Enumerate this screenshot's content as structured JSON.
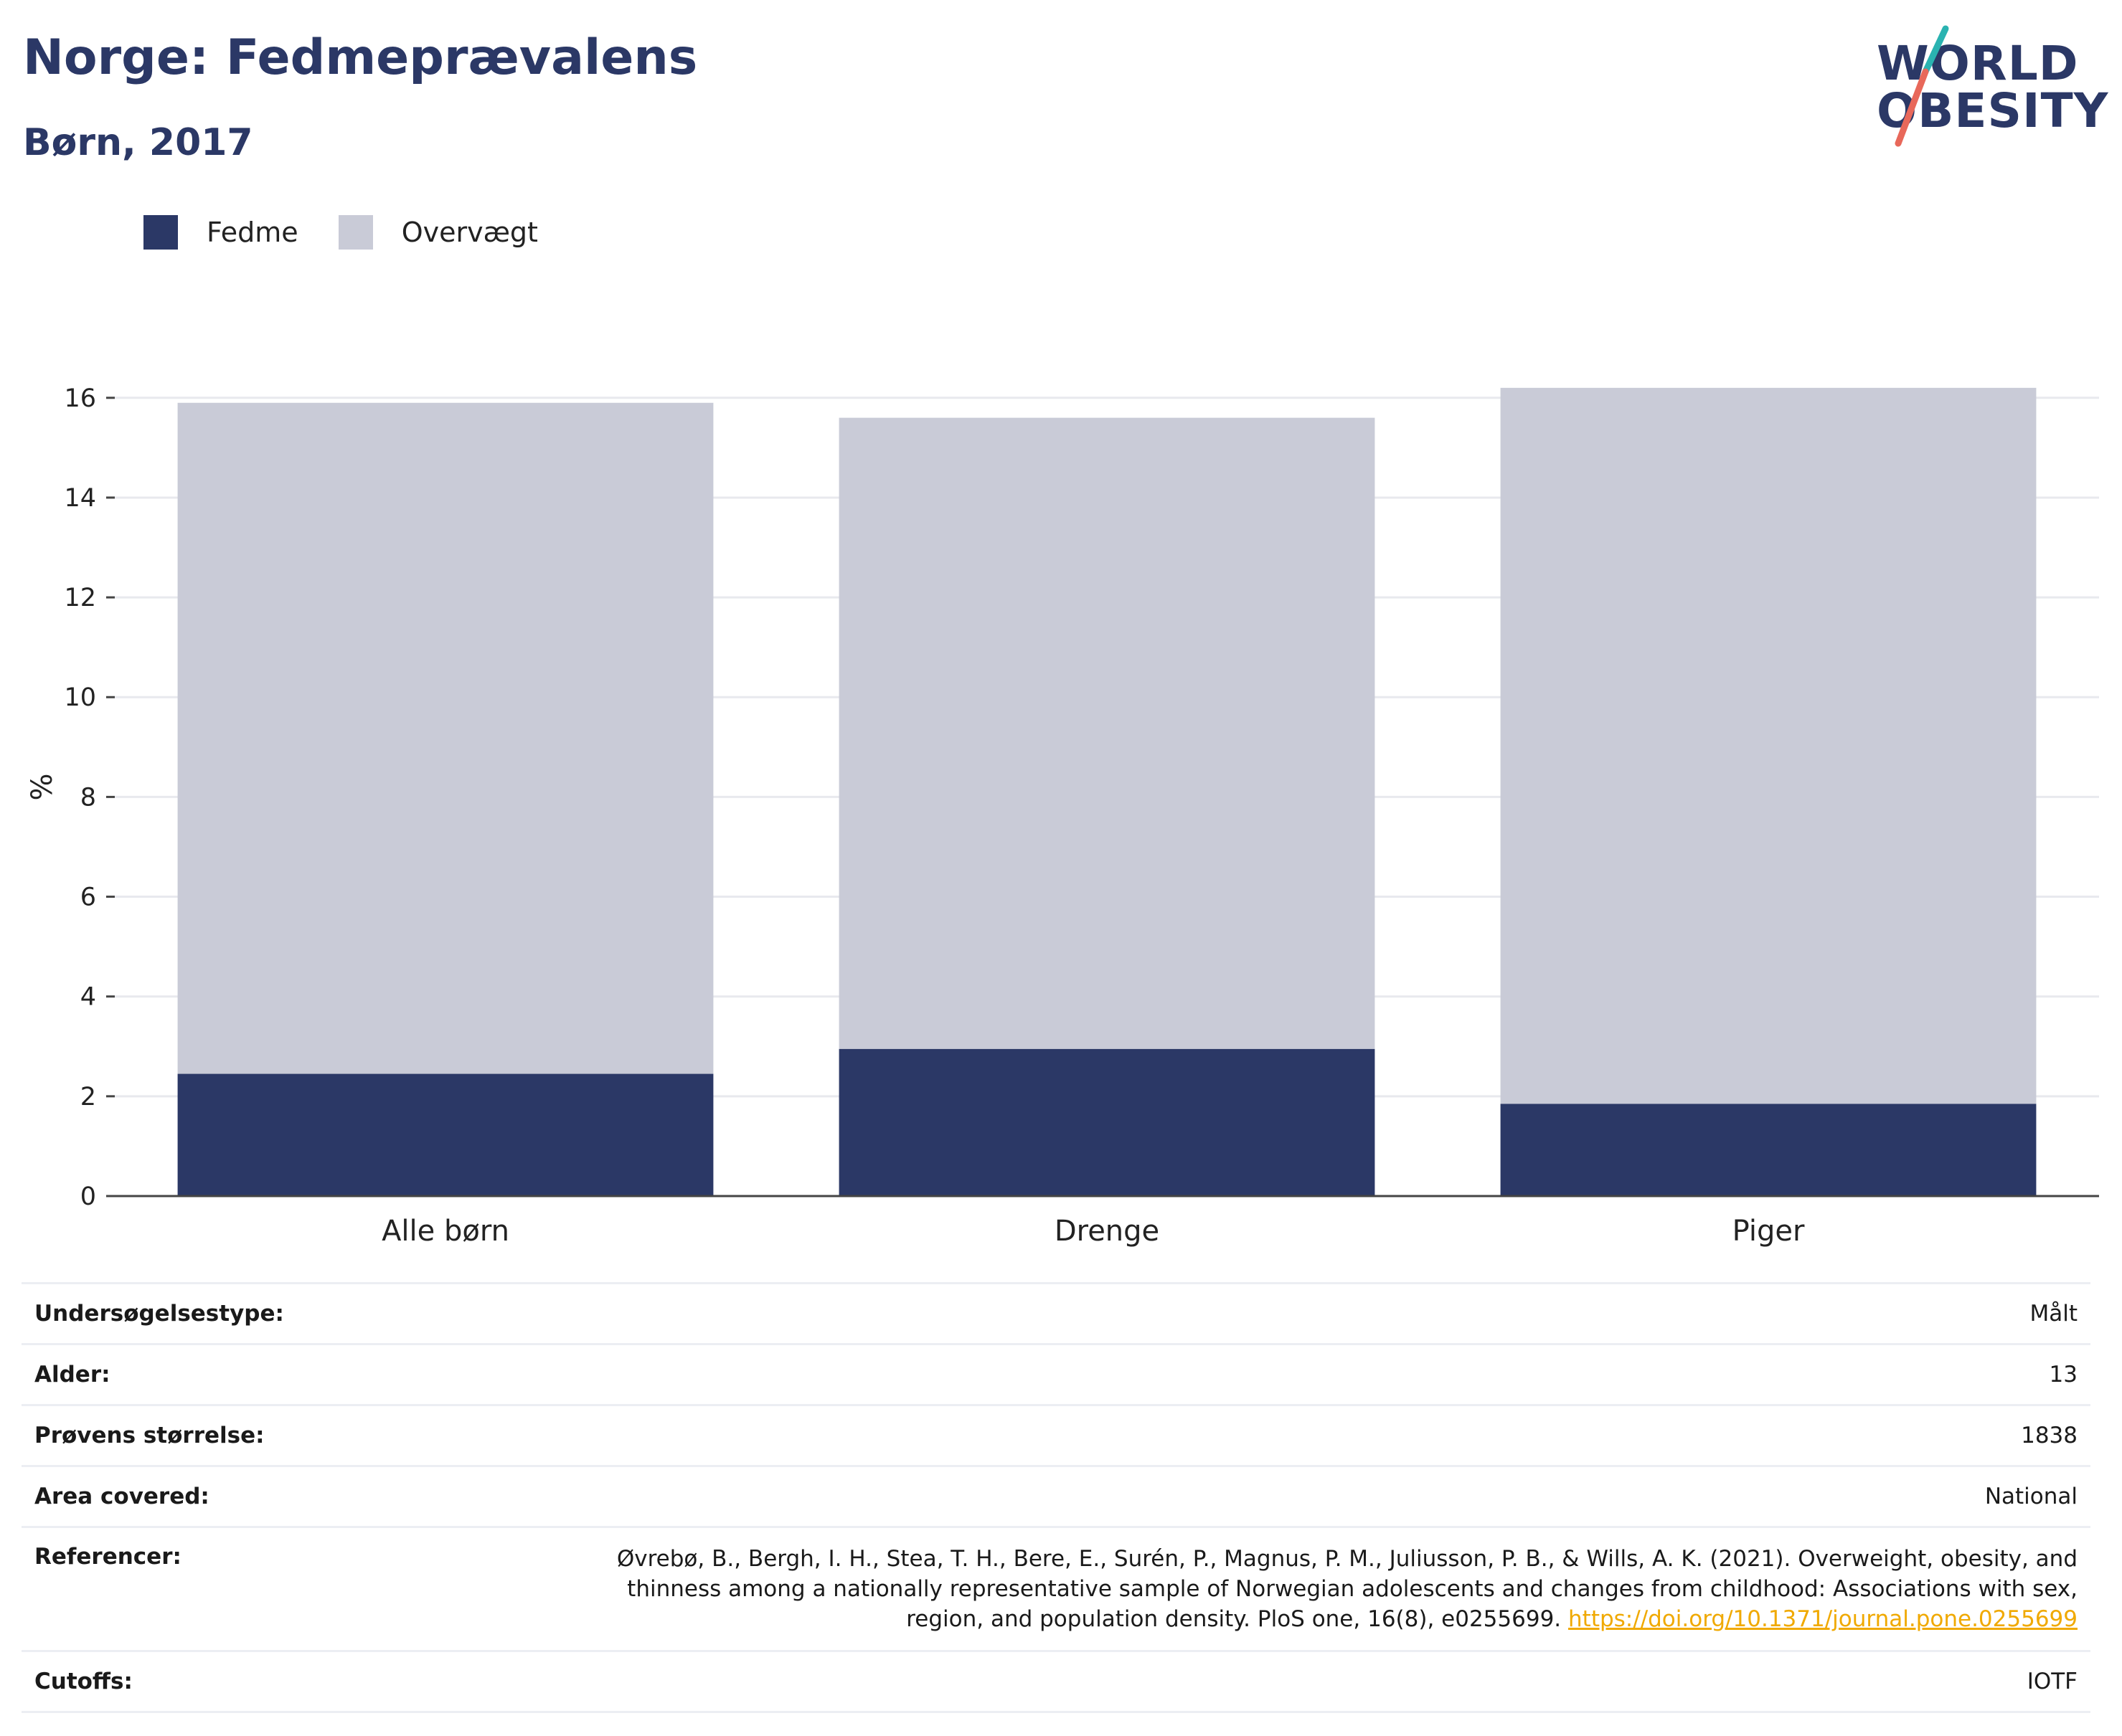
{
  "header": {
    "title": "Norge: Fedmeprævalens",
    "subtitle": "Børn, 2017"
  },
  "logo": {
    "line1": "WORLD",
    "line2": "OBESITY",
    "colors": {
      "text": "#2b3866",
      "teal": "#2ab3b1",
      "coral": "#e8685a"
    }
  },
  "legend": [
    {
      "label": "Fedme",
      "color": "#2b3866"
    },
    {
      "label": "Overvægt",
      "color": "#c9cbd7"
    }
  ],
  "chart_data": {
    "type": "bar",
    "stacked": true,
    "categories": [
      "Alle børn",
      "Drenge",
      "Piger"
    ],
    "series": [
      {
        "name": "Fedme",
        "color": "#2b3866",
        "values": [
          2.45,
          2.95,
          1.85
        ]
      },
      {
        "name": "Overvægt",
        "color": "#c9cbd7",
        "values": [
          13.45,
          12.65,
          14.35
        ]
      }
    ],
    "ylabel": "%",
    "xlabel": "",
    "ylim": [
      0,
      16.5
    ],
    "yticks": [
      0,
      2,
      4,
      6,
      8,
      10,
      12,
      14,
      16
    ],
    "grid": true,
    "legend_position": "top-left"
  },
  "info_table": [
    {
      "key": "Undersøgelsestype:",
      "value": "Målt"
    },
    {
      "key": "Alder:",
      "value": "13"
    },
    {
      "key": "Prøvens størrelse:",
      "value": "1838"
    },
    {
      "key": "Area covered:",
      "value": "National"
    },
    {
      "key": "Referencer:",
      "lines": [
        "Øvrebø, B., Bergh, I. H., Stea, T. H., Bere, E., Surén, P., Magnus, P. M., Juliusson, P. B., & Wills, A. K. (2021). Overweight, obesity, and",
        "thinness among a nationally representative sample of Norwegian adolescents and changes from childhood: Associations with sex,",
        "region, and population density. PloS one, 16(8), e0255699."
      ],
      "link": "https://doi.org/10.1371/journal.pone.0255699",
      "link_color": "#f0a900"
    },
    {
      "key": "Cutoffs:",
      "value": "IOTF"
    }
  ]
}
